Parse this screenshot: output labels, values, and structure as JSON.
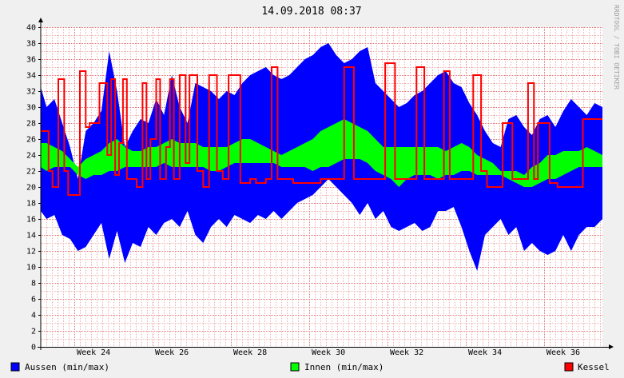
{
  "chart_data": {
    "type": "area",
    "title": "14.09.2018 08:37",
    "watermark": "RRDTOOL / TOBI OETIKER",
    "ylim": [
      0,
      40
    ],
    "yticks": [
      0,
      2,
      4,
      6,
      8,
      10,
      12,
      14,
      16,
      18,
      20,
      22,
      24,
      26,
      28,
      30,
      32,
      34,
      36,
      38,
      40
    ],
    "xlim": [
      23.15,
      37.5
    ],
    "xticks": [
      {
        "week": 24,
        "label": "Week 24"
      },
      {
        "week": 26,
        "label": "Week 26"
      },
      {
        "week": 28,
        "label": "Week 28"
      },
      {
        "week": 30,
        "label": "Week 30"
      },
      {
        "week": 32,
        "label": "Week 32"
      },
      {
        "week": 34,
        "label": "Week 34"
      },
      {
        "week": 36,
        "label": "Week 36"
      }
    ],
    "grid": true,
    "legend_position": "bottom",
    "colors": {
      "aussen": "#0000ff",
      "innen": "#00ff00",
      "kessel": "#ff0000",
      "grid_minor": "#f0b0b0",
      "grid_major": "#e07070",
      "background": "#ffffff"
    },
    "series": [
      {
        "name": "Aussen (min/max)",
        "x": [
          23.15,
          23.3,
          23.5,
          23.7,
          23.9,
          24.1,
          24.3,
          24.5,
          24.7,
          24.9,
          25.1,
          25.3,
          25.5,
          25.7,
          25.9,
          26.1,
          26.3,
          26.5,
          26.7,
          26.9,
          27.1,
          27.3,
          27.5,
          27.7,
          27.9,
          28.1,
          28.3,
          28.5,
          28.7,
          28.9,
          29.1,
          29.3,
          29.5,
          29.7,
          29.9,
          30.1,
          30.3,
          30.5,
          30.7,
          30.9,
          31.1,
          31.3,
          31.5,
          31.7,
          31.9,
          32.1,
          32.3,
          32.5,
          32.7,
          32.9,
          33.1,
          33.3,
          33.5,
          33.7,
          33.9,
          34.1,
          34.3,
          34.5,
          34.7,
          34.9,
          35.1,
          35.3,
          35.5,
          35.7,
          35.9,
          36.1,
          36.3,
          36.5,
          36.7,
          36.9,
          37.1,
          37.3,
          37.5
        ],
        "min": [
          17,
          16,
          16.5,
          14,
          13.5,
          12,
          12.5,
          14,
          15.5,
          11,
          14.5,
          10.5,
          13,
          12.5,
          15,
          14,
          15.5,
          16,
          15,
          17,
          14,
          13,
          15,
          16,
          15,
          16.5,
          16,
          15.5,
          16.5,
          16,
          17,
          16,
          17,
          18,
          18.5,
          19,
          20,
          21,
          20,
          19,
          18,
          16.5,
          18,
          16,
          17,
          15,
          14.5,
          15,
          15.5,
          14.5,
          15,
          17,
          17,
          17.5,
          15,
          12,
          9.5,
          14,
          15,
          16,
          14,
          15,
          12,
          13,
          12,
          11.5,
          12,
          14,
          12,
          14,
          15,
          15,
          16
        ],
        "max": [
          32.5,
          30,
          31,
          28,
          25,
          21,
          27,
          28,
          29.5,
          37,
          32,
          25,
          27,
          28.5,
          28,
          31,
          29,
          34,
          30,
          28,
          33,
          32.5,
          32,
          31,
          32,
          31.5,
          33,
          34,
          34.5,
          35,
          34,
          33.5,
          34,
          35,
          36,
          36.5,
          37.5,
          38,
          36.5,
          35.5,
          36,
          37,
          37.5,
          33,
          32,
          31,
          30,
          30.5,
          31.5,
          32,
          33,
          34,
          34.5,
          33,
          32.5,
          30.5,
          29,
          27,
          25.5,
          25,
          28.5,
          29,
          27.5,
          26.5,
          28.5,
          29,
          27.5,
          29.5,
          31,
          30,
          29,
          30.5,
          30
        ]
      },
      {
        "name": "Innen (min/max)",
        "x": [
          23.15,
          23.3,
          23.5,
          23.7,
          23.9,
          24.1,
          24.3,
          24.5,
          24.7,
          24.9,
          25.1,
          25.3,
          25.5,
          25.7,
          25.9,
          26.1,
          26.3,
          26.5,
          26.7,
          26.9,
          27.1,
          27.3,
          27.5,
          27.7,
          27.9,
          28.1,
          28.3,
          28.5,
          28.7,
          28.9,
          29.1,
          29.3,
          29.5,
          29.7,
          29.9,
          30.1,
          30.3,
          30.5,
          30.7,
          30.9,
          31.1,
          31.3,
          31.5,
          31.7,
          31.9,
          32.1,
          32.3,
          32.5,
          32.7,
          32.9,
          33.1,
          33.3,
          33.5,
          33.7,
          33.9,
          34.1,
          34.3,
          34.5,
          34.7,
          34.9,
          35.1,
          35.3,
          35.5,
          35.7,
          35.9,
          36.1,
          36.3,
          36.5,
          36.7,
          36.9,
          37.1,
          37.3,
          37.5
        ],
        "min": [
          22.5,
          22,
          22.5,
          22.5,
          22.5,
          21.5,
          21,
          21.5,
          21.5,
          22,
          22,
          22.5,
          22.5,
          22.5,
          22.5,
          22.5,
          23,
          22.5,
          22.5,
          22.5,
          22.5,
          22.5,
          22,
          22,
          22.5,
          23,
          23,
          23,
          23,
          23,
          23,
          22.5,
          22.5,
          22.5,
          22.5,
          22,
          22.5,
          22.5,
          23,
          23.5,
          23.5,
          23.5,
          23,
          22,
          21.5,
          21,
          20,
          21,
          21.5,
          21.5,
          21.5,
          21,
          21.5,
          21.5,
          22,
          22,
          21.5,
          21.5,
          21.5,
          21.5,
          21,
          20.5,
          20,
          20,
          20.5,
          21,
          21,
          21.5,
          22,
          22.5,
          22.5,
          22.5,
          22.5
        ],
        "max": [
          25.5,
          25.5,
          25,
          24.5,
          23.5,
          22.5,
          23.5,
          24,
          24.5,
          25.5,
          26,
          25,
          24.5,
          24.5,
          25,
          25,
          25.5,
          26,
          25.5,
          25.5,
          25.5,
          25,
          25,
          25,
          25,
          25.5,
          26,
          26,
          25.5,
          25,
          24.5,
          24,
          24.5,
          25,
          25.5,
          26,
          27,
          27.5,
          28,
          28.5,
          28,
          27.5,
          27,
          26,
          25,
          25,
          25,
          25,
          25,
          25,
          25,
          25,
          24.5,
          25,
          25.5,
          25,
          24,
          23.5,
          23,
          22,
          22,
          22,
          21.5,
          22.5,
          23,
          24,
          24,
          24.5,
          24.5,
          24.5,
          25,
          24.5,
          24
        ]
      },
      {
        "name": "Kessel",
        "x": [
          23.15,
          23.35,
          23.45,
          23.6,
          23.75,
          23.85,
          23.95,
          24.15,
          24.3,
          24.4,
          24.55,
          24.65,
          24.85,
          24.95,
          25.05,
          25.15,
          25.25,
          25.35,
          25.5,
          25.6,
          25.75,
          25.85,
          25.95,
          26.1,
          26.2,
          26.35,
          26.45,
          26.55,
          26.7,
          26.85,
          26.95,
          27.15,
          27.3,
          27.45,
          27.65,
          27.8,
          27.95,
          28.1,
          28.25,
          28.5,
          28.65,
          28.9,
          29.05,
          29.2,
          29.4,
          29.6,
          29.85,
          30.15,
          30.3,
          30.45,
          30.65,
          30.9,
          31.15,
          31.45,
          31.7,
          31.95,
          32.2,
          32.3,
          32.45,
          32.6,
          32.75,
          32.95,
          33.2,
          33.45,
          33.6,
          33.75,
          34.0,
          34.2,
          34.4,
          34.55,
          34.75,
          34.95,
          35.2,
          35.45,
          35.6,
          35.75,
          35.85,
          36.0,
          36.15,
          36.35,
          36.55,
          36.75,
          37.0,
          37.2,
          37.35,
          37.45,
          37.5
        ],
        "y": [
          27,
          22,
          20,
          33.5,
          22,
          19,
          19,
          34.5,
          27.5,
          28,
          28,
          33,
          24,
          33.5,
          21.5,
          25.5,
          33.5,
          21,
          21,
          20,
          33,
          21,
          26,
          33.5,
          21,
          25,
          33.5,
          21,
          34,
          23,
          34,
          22,
          20,
          34,
          22,
          21,
          34,
          34,
          20.5,
          21,
          20.5,
          21,
          35,
          21,
          21,
          20.5,
          20.5,
          20.5,
          21,
          21,
          21,
          35,
          21,
          21,
          21,
          35.5,
          21,
          21,
          21,
          21,
          35,
          21,
          21,
          34.5,
          21,
          21,
          21,
          34,
          22,
          20,
          20,
          28,
          21,
          21,
          33,
          21,
          28,
          28,
          20.5,
          20,
          20,
          20,
          28.5,
          28.5,
          28.5,
          28.5,
          28.5
        ]
      }
    ]
  }
}
